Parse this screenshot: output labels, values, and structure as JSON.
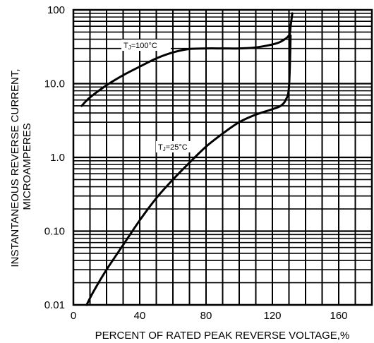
{
  "chart_data": {
    "type": "line",
    "title": "",
    "xlabel": "PERCENT OF RATED PEAK REVERSE VOLTAGE,%",
    "ylabel_lines": [
      "INSTANTANEOUS REVERSE CURRENT,",
      "MICROAMPERES"
    ],
    "x_scale": "linear",
    "y_scale": "log",
    "xlim": [
      0,
      180
    ],
    "ylim": [
      0.01,
      100
    ],
    "x_ticks": [
      0,
      40,
      80,
      120,
      160
    ],
    "x_tick_labels": [
      "0",
      "40",
      "80",
      "120",
      "160"
    ],
    "y_ticks": [
      0.01,
      0.1,
      1,
      10,
      100
    ],
    "y_tick_labels": [
      "0.01",
      "0.10",
      "1.0",
      "10.0",
      "100"
    ],
    "grid": true,
    "legend": "none",
    "series": [
      {
        "label_main": "T",
        "label_sub": "J",
        "label_rest": "=100°C",
        "x": [
          5,
          10,
          20,
          30,
          40,
          50,
          60,
          70,
          80,
          90,
          100,
          110,
          120,
          125,
          130,
          131,
          132
        ],
        "y": [
          5.0,
          6.5,
          9.5,
          13,
          17,
          22,
          26.5,
          29.5,
          30,
          30,
          30,
          31,
          34,
          37,
          45,
          60,
          90
        ]
      },
      {
        "label_main": "T",
        "label_sub": "J",
        "label_rest": "=25°C",
        "x": [
          8,
          12,
          20,
          30,
          40,
          50,
          60,
          70,
          80,
          90,
          100,
          110,
          120,
          125,
          128,
          130,
          131
        ],
        "y": [
          0.01,
          0.015,
          0.03,
          0.065,
          0.14,
          0.28,
          0.5,
          0.85,
          1.4,
          2.1,
          3.0,
          3.8,
          4.5,
          5.0,
          6.0,
          9.0,
          45
        ]
      }
    ]
  }
}
